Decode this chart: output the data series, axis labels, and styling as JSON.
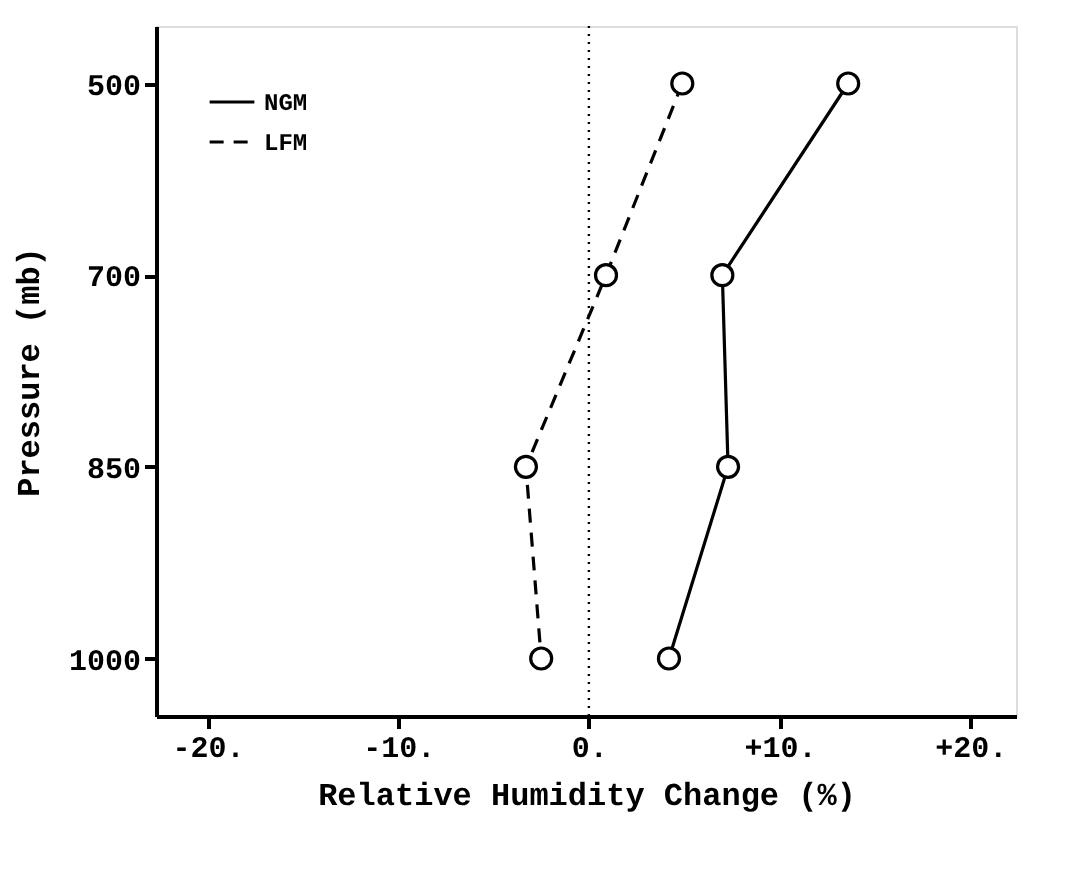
{
  "chart_data": {
    "type": "line",
    "orientation": "horizontal",
    "xlabel": "Relative Humidity Change (%)",
    "ylabel": "Pressure (mb)",
    "categories": [
      "500",
      "700",
      "850",
      "1000"
    ],
    "series": [
      {
        "name": "NGM",
        "color": "#000000",
        "line_style": "solid",
        "values": [
          13.6,
          7.0,
          7.3,
          4.2
        ]
      },
      {
        "name": "LFM",
        "color": "#000000",
        "line_style": "dashed",
        "values": [
          4.9,
          0.9,
          -3.3,
          -2.5
        ]
      }
    ],
    "marker": "circle",
    "xlim": [
      -22.7,
      22.4
    ],
    "xticks": [
      {
        "value": -20,
        "label": "-20."
      },
      {
        "value": -10,
        "label": "-10."
      },
      {
        "value": 0,
        "label": "0."
      },
      {
        "value": 10,
        "label": "+10."
      },
      {
        "value": 20,
        "label": "+20."
      }
    ],
    "ref_lines": [
      {
        "axis": "x",
        "value": 0,
        "line_style": "dotted",
        "color": "#000000"
      }
    ],
    "legend": "top left",
    "grid": false
  }
}
